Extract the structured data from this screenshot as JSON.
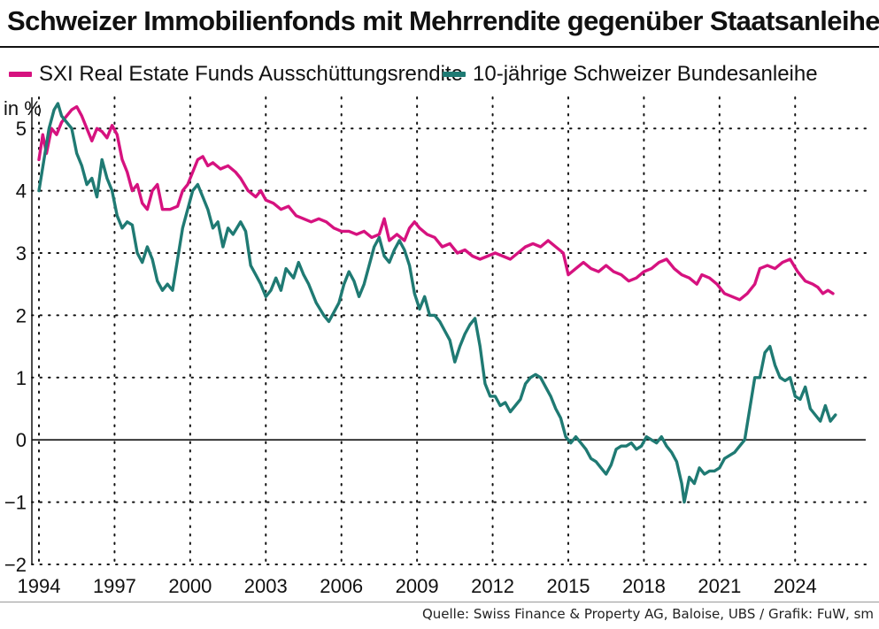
{
  "header": {
    "title": "Schweizer Immobilienfonds mit Mehrrendite gegenüber Staatsanleihen"
  },
  "legend": [
    {
      "label": "SXI Real Estate Funds Ausschüttungsrendite",
      "color": "#d6127f"
    },
    {
      "label": "10-jährige Schweizer Bundesanleihe",
      "color": "#1f7a73"
    }
  ],
  "footer": {
    "source": "Quelle: Swiss Finance & Property AG, Baloise, UBS / Grafik: FuW, sm"
  },
  "chart_data": {
    "type": "line",
    "title": "Schweizer Immobilienfonds mit Mehrrendite gegenüber Staatsanleihen",
    "xlabel": "",
    "ylabel": "in %",
    "xlim": [
      1994,
      2026.8
    ],
    "ylim": [
      -2,
      5.5
    ],
    "x_ticks": [
      1994,
      1997,
      2000,
      2003,
      2006,
      2009,
      2012,
      2015,
      2018,
      2021,
      2024
    ],
    "x_tick_labels": [
      "1994",
      "1997",
      "2000",
      "2003",
      "2006",
      "2009",
      "2012",
      "2015",
      "2018",
      "2021",
      "2024"
    ],
    "y_ticks": [
      -2,
      -1,
      0,
      1,
      2,
      3,
      4,
      5
    ],
    "y_tick_labels": [
      "−2",
      "−1",
      "0",
      "1",
      "2",
      "3",
      "4",
      "5"
    ],
    "grid": "dotted",
    "legend_position": "top",
    "series": [
      {
        "name": "SXI Real Estate Funds Ausschüttungsrendite",
        "color": "#d6127f",
        "points": [
          [
            1994.0,
            4.5
          ],
          [
            1994.15,
            4.9
          ],
          [
            1994.3,
            4.6
          ],
          [
            1994.5,
            5.0
          ],
          [
            1994.7,
            4.9
          ],
          [
            1994.9,
            5.1
          ],
          [
            1995.1,
            5.2
          ],
          [
            1995.3,
            5.3
          ],
          [
            1995.5,
            5.35
          ],
          [
            1995.7,
            5.2
          ],
          [
            1995.9,
            5.0
          ],
          [
            1996.1,
            4.8
          ],
          [
            1996.3,
            5.0
          ],
          [
            1996.5,
            4.95
          ],
          [
            1996.7,
            4.85
          ],
          [
            1996.9,
            5.05
          ],
          [
            1997.1,
            4.9
          ],
          [
            1997.3,
            4.5
          ],
          [
            1997.5,
            4.3
          ],
          [
            1997.7,
            4.0
          ],
          [
            1997.9,
            4.1
          ],
          [
            1998.1,
            3.8
          ],
          [
            1998.3,
            3.7
          ],
          [
            1998.5,
            4.0
          ],
          [
            1998.7,
            4.1
          ],
          [
            1998.9,
            3.7
          ],
          [
            1999.2,
            3.7
          ],
          [
            1999.5,
            3.75
          ],
          [
            1999.7,
            4.0
          ],
          [
            1999.9,
            4.1
          ],
          [
            2000.1,
            4.3
          ],
          [
            2000.3,
            4.5
          ],
          [
            2000.5,
            4.55
          ],
          [
            2000.7,
            4.4
          ],
          [
            2000.9,
            4.45
          ],
          [
            2001.2,
            4.35
          ],
          [
            2001.5,
            4.4
          ],
          [
            2001.8,
            4.3
          ],
          [
            2002.0,
            4.2
          ],
          [
            2002.3,
            4.0
          ],
          [
            2002.6,
            3.9
          ],
          [
            2002.8,
            4.0
          ],
          [
            2003.0,
            3.85
          ],
          [
            2003.3,
            3.8
          ],
          [
            2003.6,
            3.7
          ],
          [
            2003.9,
            3.75
          ],
          [
            2004.2,
            3.6
          ],
          [
            2004.5,
            3.55
          ],
          [
            2004.8,
            3.5
          ],
          [
            2005.1,
            3.55
          ],
          [
            2005.4,
            3.5
          ],
          [
            2005.7,
            3.4
          ],
          [
            2006.0,
            3.35
          ],
          [
            2006.3,
            3.35
          ],
          [
            2006.6,
            3.3
          ],
          [
            2006.9,
            3.35
          ],
          [
            2007.2,
            3.25
          ],
          [
            2007.5,
            3.3
          ],
          [
            2007.7,
            3.55
          ],
          [
            2007.9,
            3.2
          ],
          [
            2008.2,
            3.3
          ],
          [
            2008.5,
            3.2
          ],
          [
            2008.7,
            3.4
          ],
          [
            2008.9,
            3.5
          ],
          [
            2009.1,
            3.4
          ],
          [
            2009.4,
            3.3
          ],
          [
            2009.7,
            3.25
          ],
          [
            2010.0,
            3.1
          ],
          [
            2010.3,
            3.15
          ],
          [
            2010.6,
            3.0
          ],
          [
            2010.9,
            3.05
          ],
          [
            2011.2,
            2.95
          ],
          [
            2011.5,
            2.9
          ],
          [
            2011.8,
            2.95
          ],
          [
            2012.1,
            3.0
          ],
          [
            2012.4,
            2.95
          ],
          [
            2012.7,
            2.9
          ],
          [
            2013.0,
            3.0
          ],
          [
            2013.3,
            3.1
          ],
          [
            2013.6,
            3.15
          ],
          [
            2013.9,
            3.1
          ],
          [
            2014.2,
            3.2
          ],
          [
            2014.5,
            3.1
          ],
          [
            2014.8,
            3.0
          ],
          [
            2015.0,
            2.65
          ],
          [
            2015.3,
            2.75
          ],
          [
            2015.6,
            2.85
          ],
          [
            2015.9,
            2.75
          ],
          [
            2016.2,
            2.7
          ],
          [
            2016.5,
            2.8
          ],
          [
            2016.8,
            2.7
          ],
          [
            2017.1,
            2.65
          ],
          [
            2017.4,
            2.55
          ],
          [
            2017.7,
            2.6
          ],
          [
            2018.0,
            2.7
          ],
          [
            2018.3,
            2.75
          ],
          [
            2018.6,
            2.85
          ],
          [
            2018.9,
            2.9
          ],
          [
            2019.2,
            2.75
          ],
          [
            2019.5,
            2.65
          ],
          [
            2019.8,
            2.6
          ],
          [
            2020.1,
            2.5
          ],
          [
            2020.3,
            2.65
          ],
          [
            2020.6,
            2.6
          ],
          [
            2020.9,
            2.5
          ],
          [
            2021.2,
            2.35
          ],
          [
            2021.5,
            2.3
          ],
          [
            2021.8,
            2.25
          ],
          [
            2022.1,
            2.35
          ],
          [
            2022.4,
            2.5
          ],
          [
            2022.6,
            2.75
          ],
          [
            2022.9,
            2.8
          ],
          [
            2023.2,
            2.75
          ],
          [
            2023.5,
            2.85
          ],
          [
            2023.8,
            2.9
          ],
          [
            2024.1,
            2.7
          ],
          [
            2024.4,
            2.55
          ],
          [
            2024.7,
            2.5
          ],
          [
            2024.9,
            2.45
          ],
          [
            2025.1,
            2.35
          ],
          [
            2025.3,
            2.4
          ],
          [
            2025.5,
            2.35
          ]
        ]
      },
      {
        "name": "10-jährige Schweizer Bundesanleihe",
        "color": "#1f7a73",
        "points": [
          [
            1994.0,
            4.0
          ],
          [
            1994.2,
            4.5
          ],
          [
            1994.4,
            5.0
          ],
          [
            1994.6,
            5.3
          ],
          [
            1994.75,
            5.4
          ],
          [
            1994.9,
            5.2
          ],
          [
            1995.1,
            5.1
          ],
          [
            1995.3,
            5.0
          ],
          [
            1995.5,
            4.6
          ],
          [
            1995.7,
            4.4
          ],
          [
            1995.9,
            4.1
          ],
          [
            1996.1,
            4.2
          ],
          [
            1996.3,
            3.9
          ],
          [
            1996.5,
            4.5
          ],
          [
            1996.7,
            4.2
          ],
          [
            1996.9,
            4.0
          ],
          [
            1997.1,
            3.6
          ],
          [
            1997.3,
            3.4
          ],
          [
            1997.5,
            3.5
          ],
          [
            1997.7,
            3.45
          ],
          [
            1997.9,
            3.0
          ],
          [
            1998.1,
            2.85
          ],
          [
            1998.3,
            3.1
          ],
          [
            1998.5,
            2.9
          ],
          [
            1998.7,
            2.55
          ],
          [
            1998.9,
            2.4
          ],
          [
            1999.1,
            2.5
          ],
          [
            1999.3,
            2.4
          ],
          [
            1999.5,
            2.9
          ],
          [
            1999.7,
            3.4
          ],
          [
            1999.9,
            3.7
          ],
          [
            2000.1,
            4.0
          ],
          [
            2000.3,
            4.1
          ],
          [
            2000.5,
            3.9
          ],
          [
            2000.7,
            3.7
          ],
          [
            2000.9,
            3.4
          ],
          [
            2001.1,
            3.5
          ],
          [
            2001.3,
            3.1
          ],
          [
            2001.5,
            3.4
          ],
          [
            2001.7,
            3.3
          ],
          [
            2002.0,
            3.5
          ],
          [
            2002.2,
            3.35
          ],
          [
            2002.4,
            2.8
          ],
          [
            2002.6,
            2.65
          ],
          [
            2002.8,
            2.5
          ],
          [
            2003.0,
            2.3
          ],
          [
            2003.2,
            2.4
          ],
          [
            2003.4,
            2.6
          ],
          [
            2003.6,
            2.4
          ],
          [
            2003.8,
            2.75
          ],
          [
            2004.1,
            2.6
          ],
          [
            2004.3,
            2.85
          ],
          [
            2004.5,
            2.65
          ],
          [
            2004.7,
            2.5
          ],
          [
            2005.0,
            2.2
          ],
          [
            2005.3,
            2.0
          ],
          [
            2005.5,
            1.9
          ],
          [
            2005.7,
            2.05
          ],
          [
            2005.9,
            2.2
          ],
          [
            2006.1,
            2.5
          ],
          [
            2006.3,
            2.7
          ],
          [
            2006.5,
            2.55
          ],
          [
            2006.7,
            2.3
          ],
          [
            2006.9,
            2.5
          ],
          [
            2007.1,
            2.8
          ],
          [
            2007.3,
            3.1
          ],
          [
            2007.5,
            3.25
          ],
          [
            2007.7,
            2.95
          ],
          [
            2007.9,
            2.85
          ],
          [
            2008.1,
            3.05
          ],
          [
            2008.3,
            3.2
          ],
          [
            2008.5,
            3.05
          ],
          [
            2008.7,
            2.8
          ],
          [
            2008.9,
            2.35
          ],
          [
            2009.1,
            2.1
          ],
          [
            2009.3,
            2.3
          ],
          [
            2009.5,
            2.0
          ],
          [
            2009.7,
            2.0
          ],
          [
            2009.9,
            1.9
          ],
          [
            2010.1,
            1.75
          ],
          [
            2010.3,
            1.6
          ],
          [
            2010.5,
            1.25
          ],
          [
            2010.7,
            1.5
          ],
          [
            2010.9,
            1.7
          ],
          [
            2011.1,
            1.85
          ],
          [
            2011.3,
            1.95
          ],
          [
            2011.5,
            1.5
          ],
          [
            2011.7,
            0.9
          ],
          [
            2011.9,
            0.7
          ],
          [
            2012.1,
            0.7
          ],
          [
            2012.3,
            0.55
          ],
          [
            2012.5,
            0.6
          ],
          [
            2012.7,
            0.45
          ],
          [
            2012.9,
            0.55
          ],
          [
            2013.1,
            0.65
          ],
          [
            2013.3,
            0.9
          ],
          [
            2013.5,
            1.0
          ],
          [
            2013.7,
            1.05
          ],
          [
            2013.9,
            1.0
          ],
          [
            2014.1,
            0.85
          ],
          [
            2014.3,
            0.7
          ],
          [
            2014.5,
            0.5
          ],
          [
            2014.7,
            0.35
          ],
          [
            2014.9,
            0.05
          ],
          [
            2015.1,
            -0.05
          ],
          [
            2015.3,
            0.05
          ],
          [
            2015.5,
            -0.05
          ],
          [
            2015.7,
            -0.15
          ],
          [
            2015.9,
            -0.3
          ],
          [
            2016.1,
            -0.35
          ],
          [
            2016.3,
            -0.45
          ],
          [
            2016.5,
            -0.55
          ],
          [
            2016.7,
            -0.4
          ],
          [
            2016.9,
            -0.15
          ],
          [
            2017.1,
            -0.1
          ],
          [
            2017.3,
            -0.1
          ],
          [
            2017.5,
            -0.05
          ],
          [
            2017.7,
            -0.15
          ],
          [
            2017.9,
            -0.1
          ],
          [
            2018.1,
            0.05
          ],
          [
            2018.3,
            0.0
          ],
          [
            2018.5,
            -0.05
          ],
          [
            2018.7,
            0.05
          ],
          [
            2018.9,
            -0.1
          ],
          [
            2019.1,
            -0.2
          ],
          [
            2019.3,
            -0.35
          ],
          [
            2019.5,
            -0.7
          ],
          [
            2019.6,
            -1.0
          ],
          [
            2019.8,
            -0.6
          ],
          [
            2020.0,
            -0.7
          ],
          [
            2020.2,
            -0.45
          ],
          [
            2020.4,
            -0.55
          ],
          [
            2020.6,
            -0.5
          ],
          [
            2020.8,
            -0.5
          ],
          [
            2021.0,
            -0.45
          ],
          [
            2021.2,
            -0.3
          ],
          [
            2021.4,
            -0.25
          ],
          [
            2021.6,
            -0.2
          ],
          [
            2021.8,
            -0.1
          ],
          [
            2022.0,
            0.0
          ],
          [
            2022.2,
            0.5
          ],
          [
            2022.4,
            1.0
          ],
          [
            2022.6,
            1.0
          ],
          [
            2022.8,
            1.4
          ],
          [
            2023.0,
            1.5
          ],
          [
            2023.2,
            1.2
          ],
          [
            2023.4,
            1.0
          ],
          [
            2023.6,
            0.95
          ],
          [
            2023.8,
            1.0
          ],
          [
            2024.0,
            0.7
          ],
          [
            2024.2,
            0.65
          ],
          [
            2024.4,
            0.85
          ],
          [
            2024.6,
            0.5
          ],
          [
            2024.8,
            0.4
          ],
          [
            2025.0,
            0.3
          ],
          [
            2025.2,
            0.55
          ],
          [
            2025.4,
            0.3
          ],
          [
            2025.6,
            0.4
          ]
        ]
      }
    ]
  }
}
